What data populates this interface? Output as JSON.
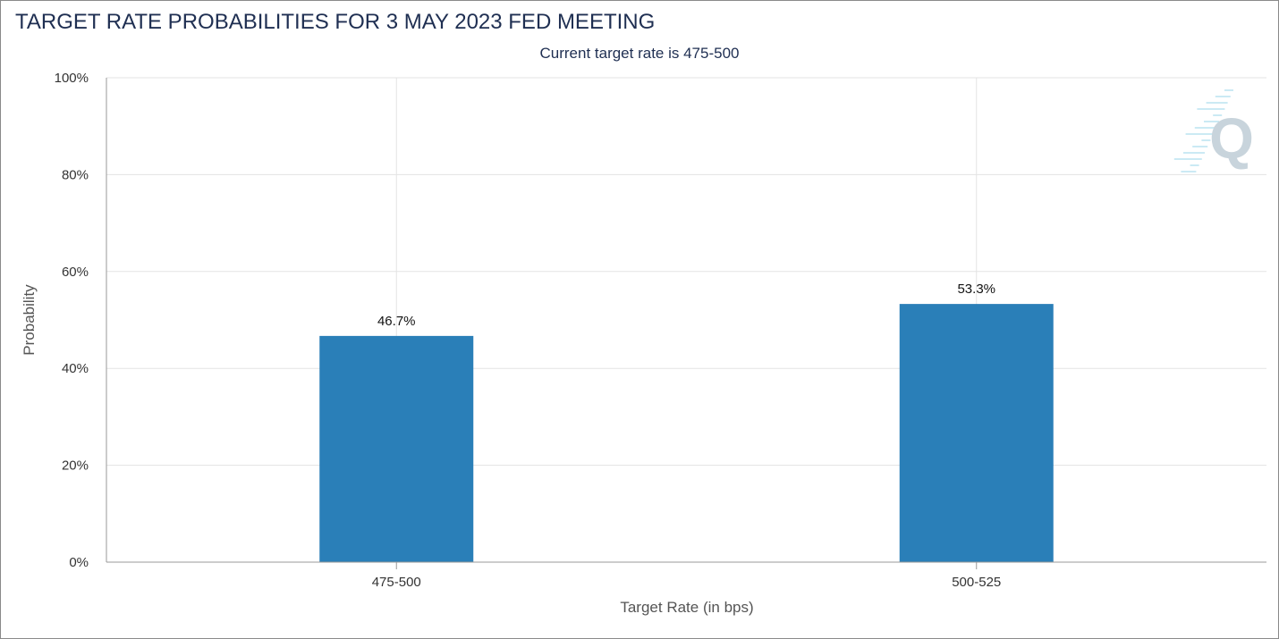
{
  "chart_data": {
    "type": "bar",
    "title": "TARGET RATE PROBABILITIES FOR 3 MAY 2023 FED MEETING",
    "subtitle": "Current target rate is 475-500",
    "xlabel": "Target Rate (in bps)",
    "ylabel": "Probability",
    "categories": [
      "475-500",
      "500-525"
    ],
    "values": [
      46.7,
      53.3
    ],
    "data_labels": [
      "46.7%",
      "53.3%"
    ],
    "ylim": [
      0,
      100
    ],
    "yticks": [
      0,
      20,
      40,
      60,
      80,
      100
    ],
    "ytick_labels": [
      "0%",
      "20%",
      "40%",
      "60%",
      "80%",
      "100%"
    ],
    "grid": true,
    "legend": "none",
    "bar_color": "#2a7fb8"
  },
  "watermark": {
    "icon": "quikstrike-q-logo-icon",
    "letter": "Q",
    "color": "#c8d4dc"
  }
}
